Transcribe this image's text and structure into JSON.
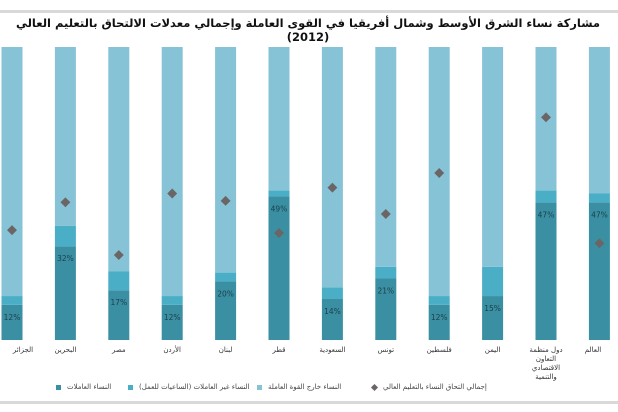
{
  "chart_data": {
    "type": "bar",
    "stacked": true,
    "title": "مشاركة نساء الشرق الأوسط وشمال أفريقيا في القوى العاملة وإجمالي معدلات الالتحاق بالتعليم العالي (2012)",
    "categories": [
      "الجزائر",
      "البحرين",
      "مصر",
      "الأردن",
      "لبنان",
      "قطر",
      "السعودية",
      "تونس",
      "فلسطين",
      "اليمن",
      "دول منظمة التعاون الاقتصادي والتنمية",
      "العالم"
    ],
    "ylim": [
      0,
      100
    ],
    "unit": "%",
    "grid": false,
    "legend_placement": "bottom",
    "series": [
      {
        "name": "النساء العاملات",
        "color": "#3a8fa3",
        "values": [
          12,
          32,
          17,
          12,
          20,
          49,
          14,
          21,
          12,
          15,
          47,
          47
        ],
        "labels": [
          "12%",
          "32%",
          "17%",
          "12%",
          "20%",
          "49%",
          "14%",
          "21%",
          "12%",
          "15%",
          "47%",
          "47%"
        ]
      },
      {
        "name": "النساء غير العاملات (الساعيات للعمل)",
        "color": "#4aaec6",
        "values": [
          3,
          7,
          6.5,
          3,
          3,
          2,
          4,
          4,
          3,
          10,
          4,
          3
        ]
      },
      {
        "name": "النساء خارج القوة العاملة",
        "color": "#86c3d6",
        "values": [
          85,
          61,
          76.5,
          85,
          77,
          49,
          82,
          75,
          85,
          75,
          49,
          50
        ]
      },
      {
        "name": "إجمالي التحاق النساء بالتعليم العالي",
        "type": "scatter",
        "marker": "diamond",
        "color": "#6b6566",
        "values": [
          37.5,
          47,
          29,
          50,
          47.5,
          36.5,
          52,
          43,
          57,
          null,
          76,
          33
        ]
      }
    ]
  }
}
